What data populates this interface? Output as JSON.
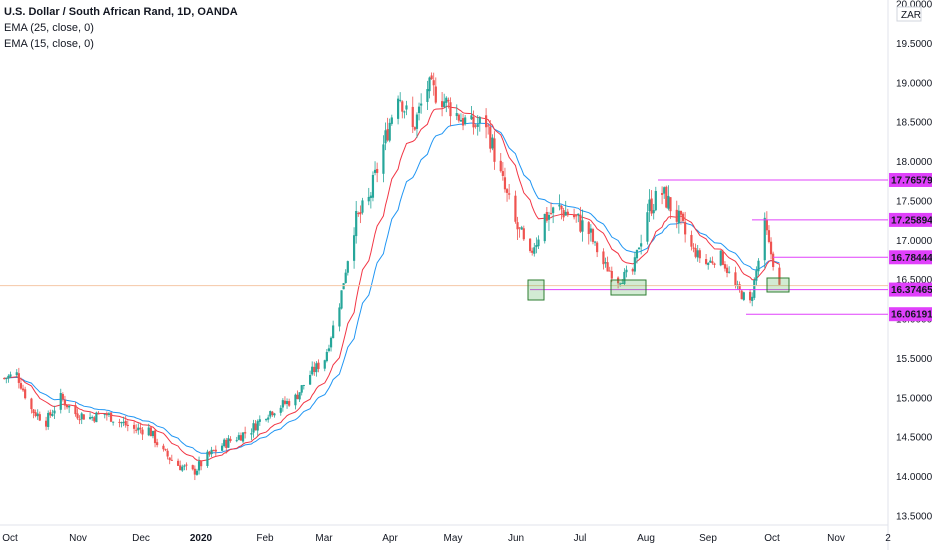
{
  "legend": {
    "title": "U.S. Dollar / South African Rand, 1D, OANDA",
    "ema25": "EMA (25, close, 0)",
    "ema15": "EMA (15, close, 0)"
  },
  "chart_data": {
    "type": "candlestick",
    "currency_label": "ZAR",
    "ylim": [
      13.5,
      20.0
    ],
    "y_ticks": [
      "13.50000",
      "14.00000",
      "14.50000",
      "15.00000",
      "15.50000",
      "16.00000",
      "16.50000",
      "17.00000",
      "17.50000",
      "18.00000",
      "18.50000",
      "19.00000",
      "19.50000",
      "20.00000"
    ],
    "x_ticks": [
      "Oct",
      "Nov",
      "Dec",
      "2020",
      "Feb",
      "Mar",
      "Apr",
      "May",
      "Jun",
      "Jul",
      "Aug",
      "Sep",
      "Oct",
      "Nov",
      "2"
    ],
    "price_levels": [
      {
        "value": 17.76579,
        "label": "17.76579",
        "type": "resistance"
      },
      {
        "value": 17.25894,
        "label": "17.25894",
        "type": "resistance"
      },
      {
        "value": 16.78444,
        "label": "16.78444",
        "type": "resistance"
      },
      {
        "value": 16.37465,
        "label": "16.37465",
        "type": "support"
      },
      {
        "value": 16.06191,
        "label": "16.06191",
        "type": "support"
      }
    ],
    "series_close_path": [
      [
        "2019-10-01",
        15.25
      ],
      [
        "2019-10-07",
        15.3
      ],
      [
        "2019-10-14",
        14.85
      ],
      [
        "2019-10-21",
        14.7
      ],
      [
        "2019-10-28",
        15.0
      ],
      [
        "2019-11-04",
        14.8
      ],
      [
        "2019-11-11",
        14.75
      ],
      [
        "2019-11-18",
        14.8
      ],
      [
        "2019-11-25",
        14.7
      ],
      [
        "2019-12-02",
        14.6
      ],
      [
        "2019-12-09",
        14.6
      ],
      [
        "2019-12-16",
        14.3
      ],
      [
        "2019-12-23",
        14.15
      ],
      [
        "2019-12-30",
        14.05
      ],
      [
        "2020-01-06",
        14.25
      ],
      [
        "2020-01-13",
        14.4
      ],
      [
        "2020-01-20",
        14.5
      ],
      [
        "2020-01-27",
        14.6
      ],
      [
        "2020-02-03",
        14.8
      ],
      [
        "2020-02-10",
        14.9
      ],
      [
        "2020-02-17",
        15.0
      ],
      [
        "2020-02-24",
        15.3
      ],
      [
        "2020-03-02",
        15.5
      ],
      [
        "2020-03-09",
        16.2
      ],
      [
        "2020-03-16",
        17.2
      ],
      [
        "2020-03-23",
        17.5
      ],
      [
        "2020-03-30",
        18.2
      ],
      [
        "2020-04-06",
        18.9
      ],
      [
        "2020-04-13",
        18.4
      ],
      [
        "2020-04-20",
        18.95
      ],
      [
        "2020-04-27",
        18.8
      ],
      [
        "2020-05-04",
        18.6
      ],
      [
        "2020-05-11",
        18.45
      ],
      [
        "2020-05-18",
        18.5
      ],
      [
        "2020-05-25",
        17.8
      ],
      [
        "2020-06-01",
        17.2
      ],
      [
        "2020-06-08",
        16.8
      ],
      [
        "2020-06-15",
        17.3
      ],
      [
        "2020-06-22",
        17.4
      ],
      [
        "2020-06-29",
        17.3
      ],
      [
        "2020-07-06",
        17.1
      ],
      [
        "2020-07-13",
        16.7
      ],
      [
        "2020-07-20",
        16.5
      ],
      [
        "2020-07-27",
        16.6
      ],
      [
        "2020-08-03",
        17.4
      ],
      [
        "2020-08-10",
        17.6
      ],
      [
        "2020-08-17",
        17.3
      ],
      [
        "2020-08-24",
        16.9
      ],
      [
        "2020-08-31",
        16.7
      ],
      [
        "2020-09-07",
        16.8
      ],
      [
        "2020-09-14",
        16.4
      ],
      [
        "2020-09-21",
        16.2
      ],
      [
        "2020-09-28",
        17.15
      ],
      [
        "2020-10-05",
        16.4
      ]
    ]
  }
}
